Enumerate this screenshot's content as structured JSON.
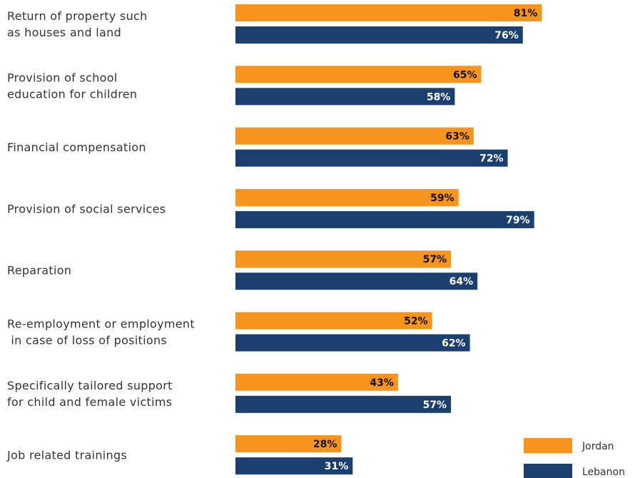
{
  "chart_data": {
    "type": "bar",
    "orientation": "horizontal",
    "categories": [
      [
        "Return of property such",
        "as houses and land"
      ],
      [
        "Provision of school",
        "education for children"
      ],
      [
        "Financial compensation"
      ],
      [
        "Provision of social services"
      ],
      [
        "Reparation"
      ],
      [
        "Re-employment or employment",
        " in case of loss of positions"
      ],
      [
        "Specifically tailored support",
        "for child and  female victims"
      ],
      [
        "Job related trainings"
      ]
    ],
    "series": [
      {
        "name": "Jordan",
        "color": "#F7941D",
        "label_color": "#111111",
        "values": [
          81,
          65,
          63,
          59,
          57,
          52,
          43,
          28
        ]
      },
      {
        "name": "Lebanon",
        "color": "#1B3F6E",
        "label_color": "#ffffff",
        "values": [
          76,
          58,
          72,
          79,
          64,
          62,
          57,
          31
        ]
      }
    ],
    "value_suffix": "%",
    "xlim": [
      0,
      100
    ],
    "grid": false,
    "legend_position": "bottom-right"
  }
}
